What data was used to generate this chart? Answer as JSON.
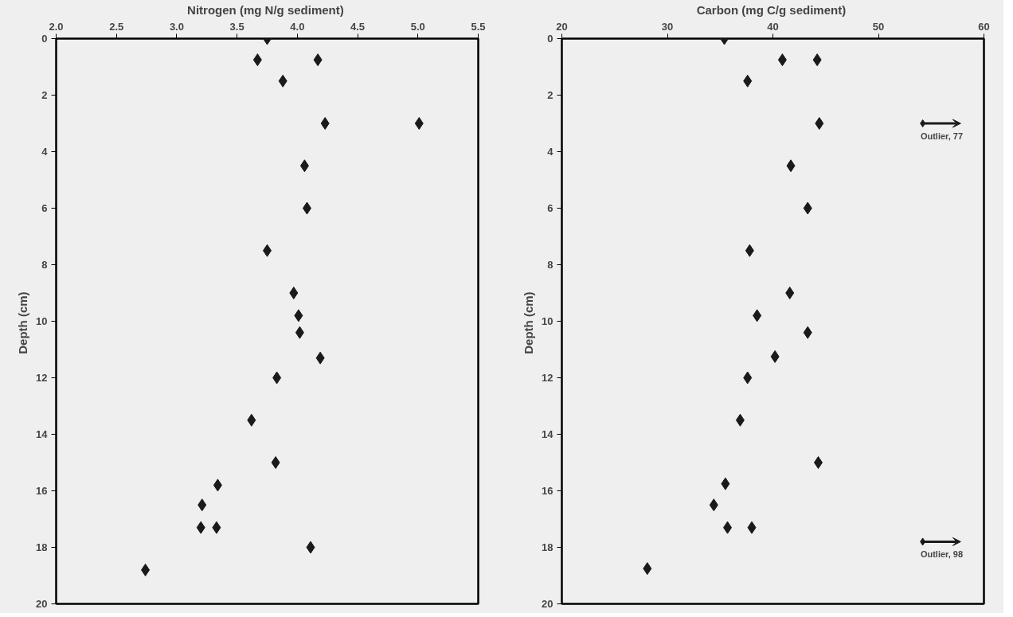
{
  "chart_data": [
    {
      "type": "scatter",
      "xlabel": "Nitrogen  (mg N/g sediment)",
      "ylabel": "Depth  (cm)",
      "marker": "diamond",
      "xlim": [
        2.0,
        5.5
      ],
      "xticks": [
        {
          "value": 2,
          "label": "2.0"
        },
        2.5,
        {
          "value": 3,
          "label": "3.0"
        },
        3.5,
        {
          "value": 4,
          "label": "4.0"
        },
        4.5,
        {
          "value": 5,
          "label": "5.0"
        },
        5.5
      ],
      "ylim": [
        20,
        0
      ],
      "yticks": [
        0,
        2,
        4,
        6,
        8,
        10,
        12,
        14,
        16,
        18,
        20
      ],
      "series": [
        {
          "color": "#1a1a1a",
          "x": [
            3.75,
            3.67,
            4.17,
            3.88,
            4.23,
            5.01,
            4.06,
            4.08,
            3.75,
            3.97,
            4.01,
            4.02,
            4.19,
            3.83,
            3.62,
            3.82,
            3.34,
            3.21,
            3.2,
            3.33,
            4.11,
            2.74
          ],
          "values": [
            0,
            0.75,
            0.75,
            1.5,
            3,
            3,
            4.5,
            6,
            7.5,
            9,
            9.8,
            10.4,
            11.3,
            12,
            13.5,
            15,
            15.8,
            16.5,
            17.3,
            17.3,
            18,
            18.8
          ]
        }
      ]
    },
    {
      "type": "scatter",
      "xlabel": "Carbon  (mg C/g sediment)",
      "ylabel": "Depth  (cm)",
      "marker": "diamond",
      "xlim": [
        20,
        60
      ],
      "xticks": [
        20,
        30,
        40,
        50,
        60
      ],
      "ylim": [
        20,
        0
      ],
      "yticks": [
        0,
        2,
        4,
        6,
        8,
        10,
        12,
        14,
        16,
        18,
        20
      ],
      "series": [
        {
          "color": "#1a1a1a",
          "x": [
            35.4,
            40.9,
            44.2,
            37.6,
            44.4,
            41.7,
            43.3,
            37.8,
            41.6,
            38.5,
            43.3,
            40.2,
            37.6,
            36.9,
            44.3,
            35.5,
            34.4,
            35.7,
            38.0,
            28.1
          ],
          "values": [
            0,
            0.75,
            0.75,
            1.5,
            3,
            4.5,
            6,
            7.5,
            9,
            9.8,
            10.4,
            11.25,
            12,
            13.5,
            15,
            15.75,
            16.5,
            17.3,
            17.3,
            18.75
          ]
        }
      ],
      "annotations": [
        "Outlier, 77",
        "Outlier, 98"
      ]
    }
  ]
}
